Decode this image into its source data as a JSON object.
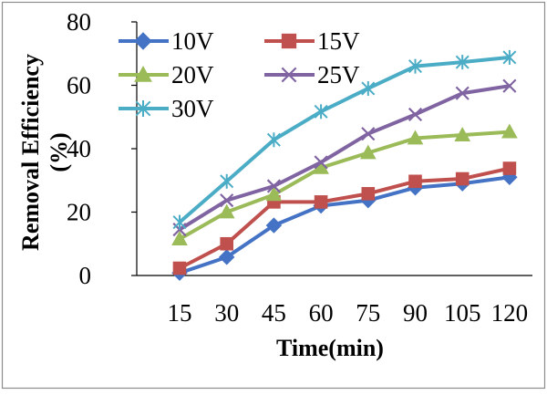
{
  "chart_data": {
    "type": "line",
    "xlabel": "Time(min)",
    "ylabel_line1": "Removal Efficiency",
    "ylabel_line2": "(%)",
    "categories": [
      "15",
      "30",
      "45",
      "60",
      "75",
      "90",
      "105",
      "120"
    ],
    "x": [
      15,
      30,
      45,
      60,
      75,
      90,
      105,
      120
    ],
    "ylim": [
      0,
      80
    ],
    "yticks": [
      0,
      20,
      40,
      60,
      80
    ],
    "legend_position": "top-left",
    "grid": false,
    "series": [
      {
        "name": "10V",
        "color": "#4472C4",
        "marker": "diamond",
        "values": [
          0.8,
          5.8,
          15.8,
          22.0,
          23.7,
          27.7,
          29.0,
          31.0
        ]
      },
      {
        "name": "15V",
        "color": "#C0504D",
        "marker": "square",
        "values": [
          2.3,
          10.0,
          23.2,
          23.2,
          25.8,
          29.7,
          30.5,
          33.8
        ]
      },
      {
        "name": "20V",
        "color": "#9BBB59",
        "marker": "triangle",
        "values": [
          11.5,
          20.0,
          25.5,
          34.0,
          38.7,
          43.3,
          44.3,
          45.3
        ]
      },
      {
        "name": "25V",
        "color": "#8064A2",
        "marker": "x",
        "values": [
          14.5,
          23.7,
          28.2,
          35.7,
          44.7,
          50.8,
          57.5,
          59.8
        ]
      },
      {
        "name": "30V",
        "color": "#4BACC6",
        "marker": "star",
        "values": [
          16.8,
          29.7,
          42.8,
          51.7,
          59.0,
          66.0,
          67.3,
          68.8
        ]
      }
    ]
  }
}
